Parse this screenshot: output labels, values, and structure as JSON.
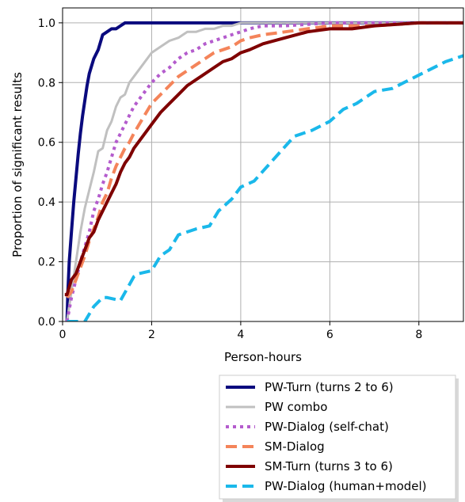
{
  "chart_data": {
    "type": "line",
    "xlabel": "Person-hours",
    "ylabel": "Proportion of significant results",
    "xlim": [
      0,
      9
    ],
    "ylim": [
      0,
      1.05
    ],
    "xticks": [
      "0",
      "2",
      "4",
      "6",
      "8"
    ],
    "yticks": [
      "0.0",
      "0.2",
      "0.4",
      "0.6",
      "0.8",
      "1.0"
    ],
    "grid": true,
    "legend_position": "below plot, right",
    "series": [
      {
        "name": "PW-Turn (turns 2 to 6)",
        "color": "#0a0a7e",
        "style": "solid",
        "x": [
          0.1,
          0.12,
          0.15,
          0.2,
          0.25,
          0.3,
          0.35,
          0.4,
          0.45,
          0.5,
          0.55,
          0.6,
          0.7,
          0.8,
          0.9,
          1.0,
          1.1,
          1.2,
          1.3,
          1.4,
          1.5,
          1.6,
          1.8,
          2.0,
          3.0,
          4.0,
          6.0,
          9.0
        ],
        "y": [
          0.0,
          0.1,
          0.2,
          0.3,
          0.4,
          0.48,
          0.56,
          0.63,
          0.69,
          0.74,
          0.79,
          0.83,
          0.88,
          0.91,
          0.96,
          0.97,
          0.98,
          0.98,
          0.99,
          1.0,
          1.0,
          1.0,
          1.0,
          1.0,
          1.0,
          1.0,
          1.0,
          1.0
        ]
      },
      {
        "name": "PW combo",
        "color": "#c0c0c0",
        "style": "solid",
        "x": [
          0.1,
          0.2,
          0.3,
          0.4,
          0.5,
          0.6,
          0.7,
          0.8,
          0.9,
          1.0,
          1.1,
          1.2,
          1.3,
          1.4,
          1.5,
          1.6,
          1.8,
          2.0,
          2.2,
          2.4,
          2.6,
          2.8,
          3.0,
          3.2,
          3.4,
          3.6,
          3.8,
          4.0,
          4.5,
          5.0,
          6.0,
          9.0
        ],
        "y": [
          0.0,
          0.1,
          0.2,
          0.3,
          0.38,
          0.44,
          0.5,
          0.57,
          0.58,
          0.64,
          0.67,
          0.72,
          0.75,
          0.76,
          0.8,
          0.82,
          0.86,
          0.9,
          0.92,
          0.94,
          0.95,
          0.97,
          0.97,
          0.98,
          0.98,
          0.99,
          0.99,
          1.0,
          1.0,
          1.0,
          1.0,
          1.0
        ]
      },
      {
        "name": "PW-Dialog (self-chat)",
        "color": "#b45ccd",
        "style": "dotted",
        "x": [
          0.1,
          0.2,
          0.3,
          0.4,
          0.5,
          0.6,
          0.7,
          0.8,
          0.9,
          1.0,
          1.1,
          1.2,
          1.3,
          1.4,
          1.5,
          1.6,
          1.8,
          2.0,
          2.2,
          2.4,
          2.6,
          2.8,
          3.0,
          3.2,
          3.4,
          3.6,
          3.8,
          4.0,
          4.2,
          4.5,
          5.0,
          6.0,
          9.0
        ],
        "y": [
          0.0,
          0.08,
          0.14,
          0.2,
          0.25,
          0.3,
          0.37,
          0.41,
          0.46,
          0.5,
          0.55,
          0.6,
          0.63,
          0.66,
          0.69,
          0.72,
          0.76,
          0.8,
          0.83,
          0.85,
          0.88,
          0.9,
          0.91,
          0.93,
          0.94,
          0.95,
          0.96,
          0.97,
          0.98,
          0.99,
          0.99,
          1.0,
          1.0
        ]
      },
      {
        "name": "SM-Dialog",
        "color": "#f4845a",
        "style": "dashed",
        "x": [
          0.1,
          0.2,
          0.3,
          0.4,
          0.5,
          0.6,
          0.7,
          0.8,
          0.9,
          1.0,
          1.1,
          1.2,
          1.3,
          1.4,
          1.5,
          1.6,
          1.8,
          2.0,
          2.2,
          2.4,
          2.6,
          2.8,
          3.0,
          3.2,
          3.4,
          3.6,
          3.8,
          4.0,
          4.2,
          4.5,
          5.0,
          5.5,
          6.0,
          7.0,
          8.0,
          9.0
        ],
        "y": [
          0.08,
          0.1,
          0.14,
          0.18,
          0.22,
          0.27,
          0.31,
          0.35,
          0.4,
          0.43,
          0.48,
          0.52,
          0.55,
          0.58,
          0.6,
          0.63,
          0.68,
          0.73,
          0.76,
          0.79,
          0.82,
          0.84,
          0.86,
          0.88,
          0.9,
          0.91,
          0.92,
          0.94,
          0.95,
          0.96,
          0.97,
          0.98,
          0.99,
          0.99,
          1.0,
          1.0
        ]
      },
      {
        "name": "SM-Turn (turns 3 to 6)",
        "color": "#7f0000",
        "style": "solid",
        "x": [
          0.05,
          0.1,
          0.2,
          0.3,
          0.4,
          0.5,
          0.6,
          0.7,
          0.8,
          0.9,
          1.0,
          1.1,
          1.2,
          1.3,
          1.4,
          1.5,
          1.6,
          1.8,
          2.0,
          2.2,
          2.4,
          2.6,
          2.8,
          3.0,
          3.2,
          3.4,
          3.6,
          3.8,
          4.0,
          4.2,
          4.5,
          5.0,
          5.5,
          6.0,
          6.5,
          7.0,
          8.0,
          9.0
        ],
        "y": [
          0.09,
          0.09,
          0.14,
          0.16,
          0.2,
          0.24,
          0.28,
          0.3,
          0.34,
          0.37,
          0.4,
          0.43,
          0.46,
          0.5,
          0.53,
          0.55,
          0.58,
          0.62,
          0.66,
          0.7,
          0.73,
          0.76,
          0.79,
          0.81,
          0.83,
          0.85,
          0.87,
          0.88,
          0.9,
          0.91,
          0.93,
          0.95,
          0.97,
          0.98,
          0.98,
          0.99,
          1.0,
          1.0
        ]
      },
      {
        "name": "PW-Dialog (human+model)",
        "color": "#1ab8ea",
        "style": "dashed",
        "x": [
          0.1,
          0.3,
          0.5,
          0.7,
          0.9,
          1.0,
          1.3,
          1.6,
          1.7,
          2.0,
          2.2,
          2.4,
          2.6,
          2.8,
          3.0,
          3.3,
          3.5,
          3.8,
          4.0,
          4.3,
          4.6,
          4.9,
          5.2,
          5.6,
          6.0,
          6.3,
          6.6,
          7.0,
          7.4,
          7.8,
          8.2,
          8.6,
          9.0
        ],
        "y": [
          0.0,
          0.0,
          0.0,
          0.05,
          0.08,
          0.08,
          0.07,
          0.15,
          0.16,
          0.17,
          0.22,
          0.24,
          0.29,
          0.3,
          0.31,
          0.32,
          0.37,
          0.41,
          0.45,
          0.47,
          0.52,
          0.57,
          0.62,
          0.64,
          0.67,
          0.71,
          0.73,
          0.77,
          0.78,
          0.81,
          0.84,
          0.87,
          0.89
        ]
      }
    ]
  }
}
